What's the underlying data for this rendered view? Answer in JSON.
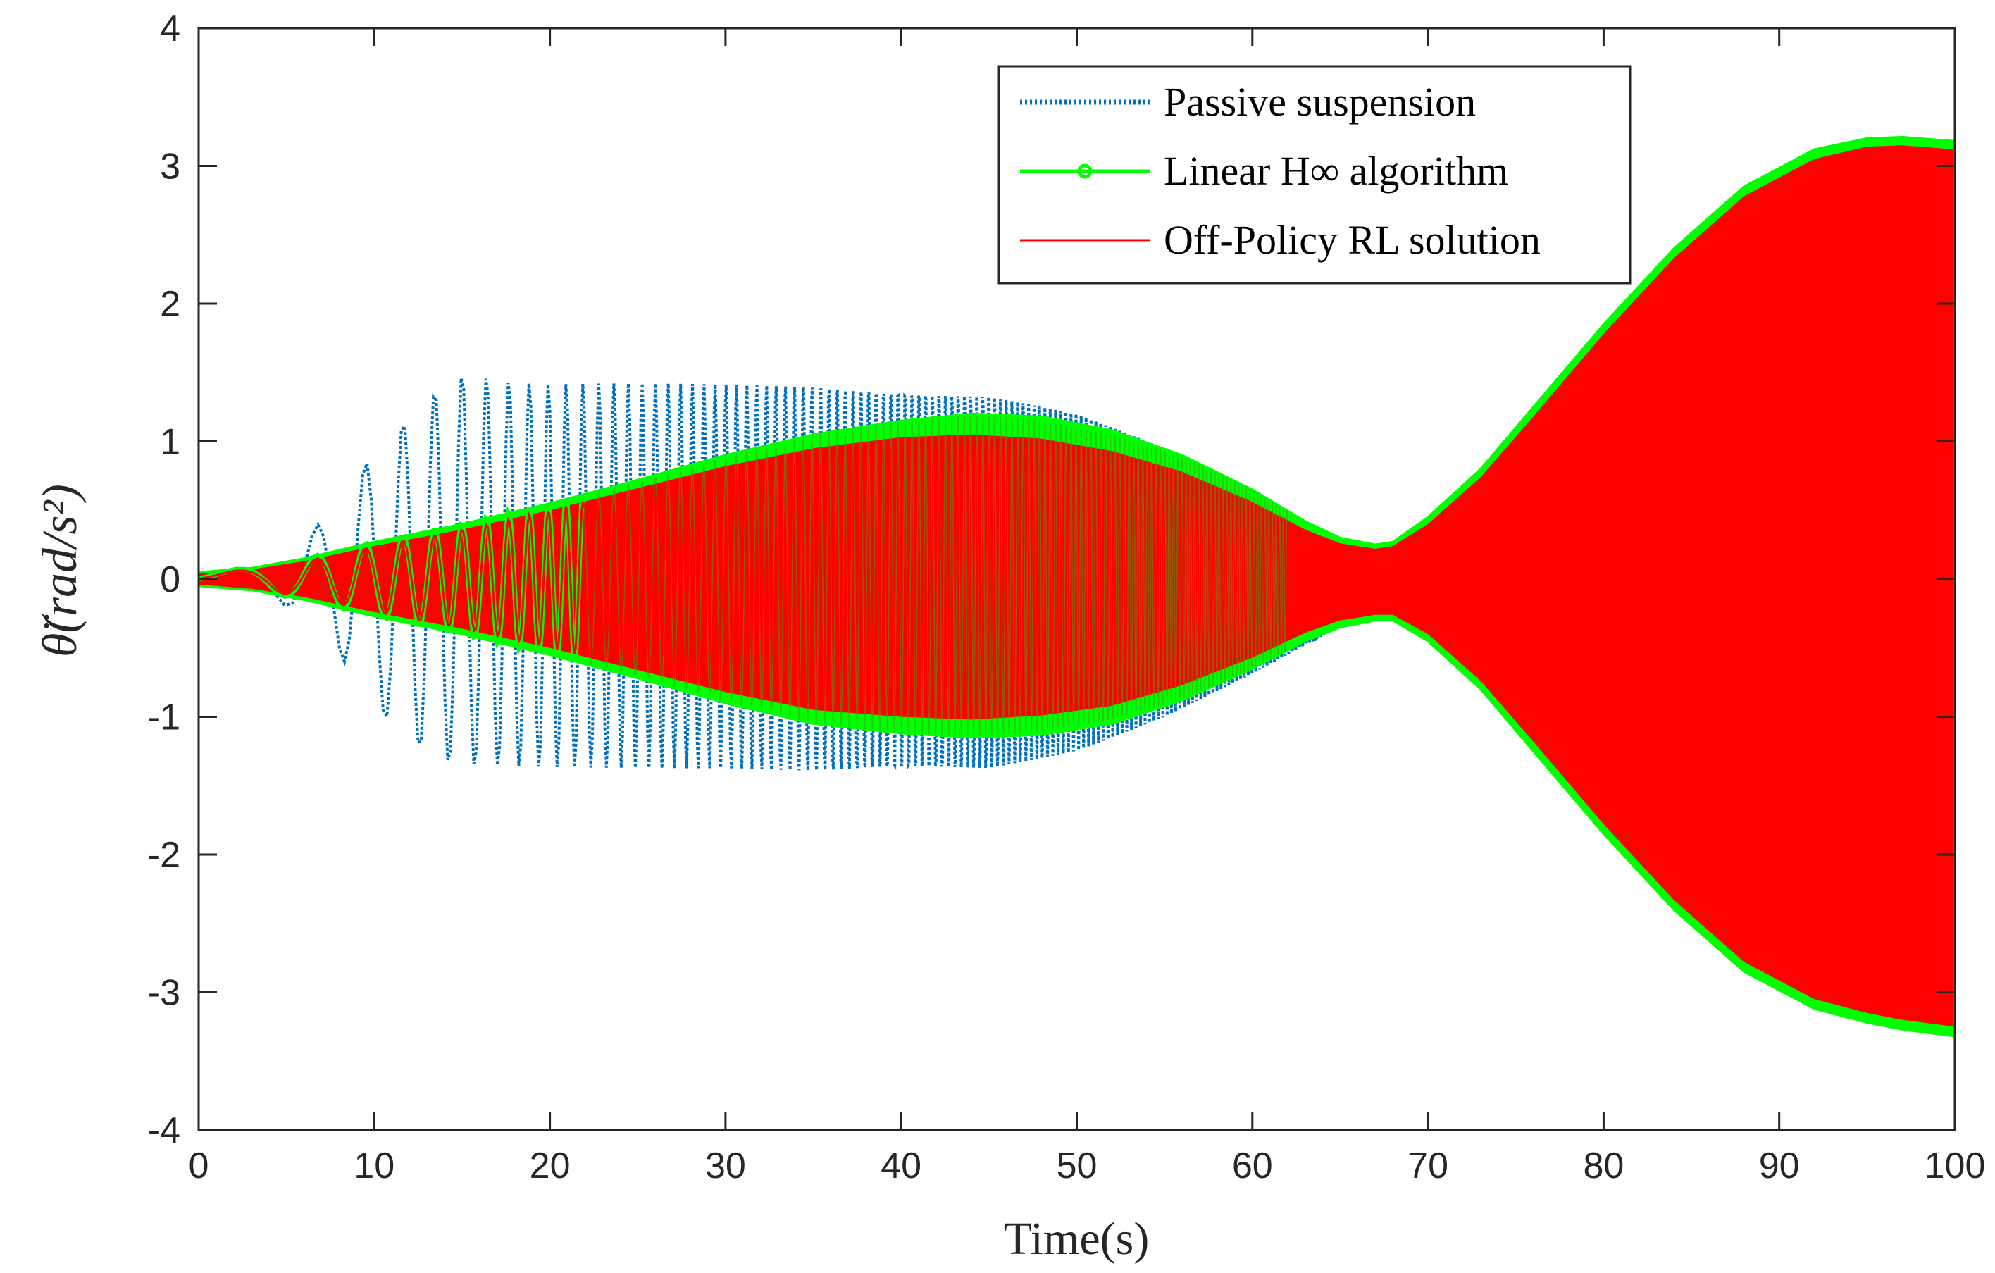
{
  "chart_data": {
    "type": "line",
    "xlabel": "Time(s)",
    "ylabel": "θ̈(rad/s²)",
    "xlim": [
      0,
      100
    ],
    "ylim": [
      -4,
      4
    ],
    "xticks": [
      "0",
      "10",
      "20",
      "30",
      "40",
      "50",
      "60",
      "70",
      "80",
      "90",
      "100"
    ],
    "yticks": [
      "-4",
      "-3",
      "-2",
      "-1",
      "0",
      "1",
      "2",
      "3",
      "4"
    ],
    "xtick_values": [
      0,
      10,
      20,
      30,
      40,
      50,
      60,
      70,
      80,
      90,
      100
    ],
    "ytick_values": [
      -4,
      -3,
      -2,
      -1,
      0,
      1,
      2,
      3,
      4
    ],
    "legend_position": "top-right",
    "series": [
      {
        "name": "Passive suspension",
        "color": "#0072BD",
        "style": "dotted",
        "envelope": {
          "t": [
            0,
            2,
            4,
            6,
            8,
            10,
            12,
            14,
            15.5,
            17,
            20,
            25,
            30,
            35,
            40,
            45,
            50,
            55,
            60,
            63,
            65,
            67,
            68
          ],
          "upper": [
            0.05,
            0.05,
            0.1,
            0.3,
            0.55,
            0.95,
            1.2,
            1.45,
            1.52,
            1.45,
            1.42,
            1.42,
            1.42,
            1.42,
            1.4,
            1.35,
            1.2,
            0.95,
            0.6,
            0.4,
            0.3,
            0.25,
            0.25
          ],
          "lower": [
            -0.05,
            -0.05,
            -0.1,
            -0.3,
            -0.55,
            -0.95,
            -1.2,
            -1.35,
            -1.37,
            -1.37,
            -1.37,
            -1.37,
            -1.38,
            -1.42,
            -1.42,
            -1.4,
            -1.25,
            -1.0,
            -0.7,
            -0.5,
            -0.35,
            -0.3,
            -0.3
          ]
        }
      },
      {
        "name": "Linear H∞ algorithm",
        "color": "#00FF00",
        "style": "solid-marker",
        "envelope": {
          "t": [
            0,
            3,
            6,
            10,
            15,
            20,
            25,
            30,
            35,
            40,
            44,
            48,
            52,
            56,
            60,
            63,
            65,
            67,
            68,
            70,
            73,
            76,
            80,
            84,
            88,
            92,
            95,
            97,
            100
          ],
          "upper": [
            0.05,
            0.08,
            0.15,
            0.27,
            0.4,
            0.55,
            0.72,
            0.9,
            1.05,
            1.15,
            1.2,
            1.18,
            1.08,
            0.9,
            0.65,
            0.42,
            0.3,
            0.25,
            0.27,
            0.45,
            0.8,
            1.25,
            1.85,
            2.4,
            2.85,
            3.12,
            3.2,
            3.21,
            3.18
          ],
          "lower": [
            -0.05,
            -0.08,
            -0.15,
            -0.27,
            -0.4,
            -0.55,
            -0.72,
            -0.9,
            -1.05,
            -1.12,
            -1.15,
            -1.13,
            -1.05,
            -0.88,
            -0.65,
            -0.45,
            -0.35,
            -0.3,
            -0.3,
            -0.45,
            -0.8,
            -1.25,
            -1.85,
            -2.4,
            -2.85,
            -3.12,
            -3.22,
            -3.27,
            -3.32
          ]
        }
      },
      {
        "name": "Off-Policy RL solution",
        "color": "#FF0000",
        "style": "solid",
        "envelope": {
          "t": [
            0,
            3,
            6,
            10,
            15,
            20,
            25,
            30,
            35,
            40,
            44,
            48,
            52,
            56,
            60,
            63,
            65,
            67,
            68,
            70,
            73,
            76,
            80,
            84,
            88,
            92,
            95,
            97,
            100
          ],
          "upper": [
            0.04,
            0.07,
            0.13,
            0.24,
            0.36,
            0.5,
            0.66,
            0.82,
            0.95,
            1.03,
            1.05,
            1.02,
            0.93,
            0.78,
            0.56,
            0.36,
            0.26,
            0.22,
            0.24,
            0.4,
            0.74,
            1.18,
            1.78,
            2.33,
            2.78,
            3.05,
            3.14,
            3.15,
            3.12
          ],
          "lower": [
            -0.04,
            -0.07,
            -0.13,
            -0.24,
            -0.36,
            -0.5,
            -0.66,
            -0.82,
            -0.95,
            -1.0,
            -1.02,
            -0.99,
            -0.92,
            -0.77,
            -0.57,
            -0.39,
            -0.3,
            -0.26,
            -0.26,
            -0.4,
            -0.74,
            -1.18,
            -1.78,
            -2.33,
            -2.78,
            -3.05,
            -3.15,
            -3.2,
            -3.25
          ]
        }
      }
    ]
  }
}
